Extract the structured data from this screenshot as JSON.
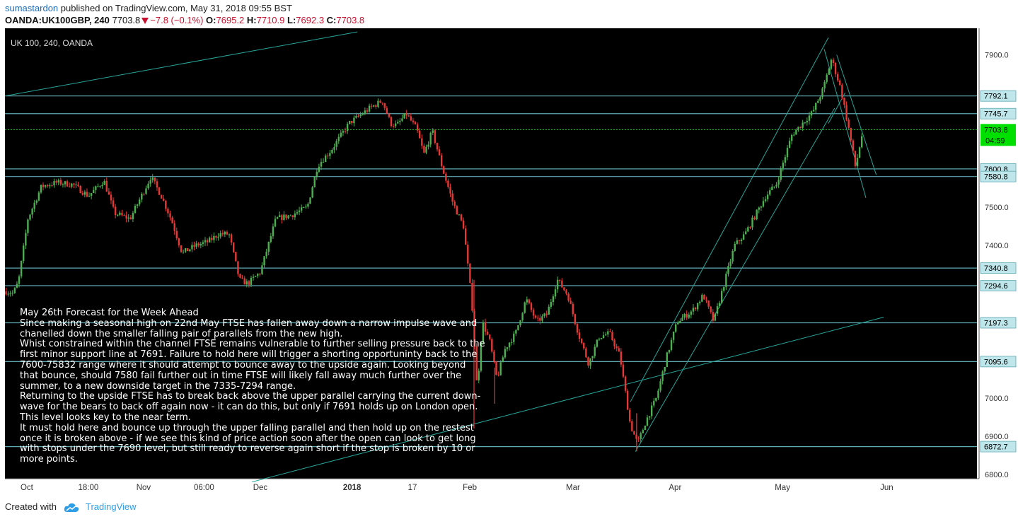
{
  "header": {
    "author": "sumastardon",
    "published": "published on TradingView.com, May 31, 2018 09:55 BST",
    "symbol": "OANDA:UK100GBP, 240",
    "last": "7703.8",
    "change": "−7.8 (−0.1%)",
    "o_label": "O:",
    "o_value": "7695.2",
    "h_label": "H:",
    "h_value": "7710.9",
    "l_label": "L:",
    "l_value": "7692.3",
    "c_label": "C:",
    "c_value": "7703.8"
  },
  "footer": {
    "created_with": "Created with",
    "brand": "TradingView",
    "brand_icon": "cloud-icon"
  },
  "annotation": {
    "lines": [
      "May 26th Forecast for the Week Ahead",
      "Since making a seasonal high on 22nd May FTSE has fallen away down a narrow impulse wave and chanelled down the smaller falling pair of parallels from the new high.",
      "Whist constrained within the channel FTSE remains vulnerable to further selling pressure back to the first minor support line at 7691. Failure to hold here will trigger a shorting opportuninty back to the 7600-75832 range where it should attempt to bounce away to the upside again. Looking beyond that bounce, should 7580 fail further out in time FTSE will likely fall away much further over the summer, to a new downside target in the 7335-7294 range.",
      "Returning to the upside FTSE has to break back above the upper parallel carrying the current down-wave for the bears to back off again now - it can do this, but only if 7691 holds up on London open. This level looks key to the near term.",
      "It must hold here and bounce up through the upper falling parallel and then hold up on the restest once it is broken above - if we see this kind of price action soon after the open can look to get long with stops under the 7690 level, but still ready to reverse again short if the stop is broken by 10 or more points."
    ]
  },
  "chart_data": {
    "type": "candlestick",
    "title": "UK 100, 240, OANDA",
    "background": "#000000",
    "colors": {
      "up": "#4caf50",
      "down": "#e53935",
      "hline": "#5fa8b3",
      "channel": "#26a69a",
      "last_price": "#00e000"
    },
    "ylim": [
      6780,
      7950
    ],
    "y_ticks": [
      7900.0,
      7500.0,
      7400.0,
      7000.0,
      6900.0,
      6800.0
    ],
    "x_tick_labels": [
      "Oct",
      "18:00",
      "Nov",
      "06:00",
      "Dec",
      "2018",
      "17",
      "Feb",
      "Mar",
      "Apr",
      "May",
      "Jun"
    ],
    "horizontal_levels": [
      7792.1,
      7745.7,
      7600.8,
      7580.8,
      7340.8,
      7294.6,
      7197.3,
      7095.6,
      6872.7
    ],
    "level_labels": [
      "7792.1",
      "7745.7",
      "7600.8",
      "7580.8",
      "7340.8",
      "7294.6",
      "7197.3",
      "7095.6",
      "6872.7"
    ],
    "last_price": 7703.8,
    "last_price_label": "7703.8",
    "countdown": "04:59",
    "price_path": [
      [
        0,
        7280
      ],
      [
        0.8,
        7275
      ],
      [
        1.3,
        7305
      ],
      [
        2.2,
        7470
      ],
      [
        3.5,
        7555
      ],
      [
        5,
        7565
      ],
      [
        6.5,
        7560
      ],
      [
        8,
        7530
      ],
      [
        9.5,
        7570
      ],
      [
        10.5,
        7485
      ],
      [
        12,
        7470
      ],
      [
        14,
        7580
      ],
      [
        15,
        7530
      ],
      [
        16,
        7465
      ],
      [
        17,
        7380
      ],
      [
        18.3,
        7400
      ],
      [
        19.5,
        7410
      ],
      [
        20.5,
        7430
      ],
      [
        21.5,
        7430
      ],
      [
        22.5,
        7310
      ],
      [
        23.3,
        7300
      ],
      [
        24.5,
        7330
      ],
      [
        26,
        7470
      ],
      [
        27.5,
        7480
      ],
      [
        29,
        7500
      ],
      [
        30,
        7610
      ],
      [
        31.3,
        7650
      ],
      [
        33,
        7720
      ],
      [
        35,
        7760
      ],
      [
        36.2,
        7780
      ],
      [
        37,
        7720
      ],
      [
        37.6,
        7715
      ],
      [
        38.5,
        7745
      ],
      [
        39.5,
        7705
      ],
      [
        40.2,
        7640
      ],
      [
        41,
        7700
      ],
      [
        42,
        7600
      ],
      [
        43,
        7510
      ],
      [
        44,
        7450
      ],
      [
        44.8,
        7250
      ],
      [
        45.3,
        7020
      ],
      [
        45.8,
        7200
      ],
      [
        46.5,
        7150
      ],
      [
        47.2,
        7050
      ],
      [
        48,
        7130
      ],
      [
        49,
        7170
      ],
      [
        50,
        7260
      ],
      [
        51,
        7200
      ],
      [
        52,
        7220
      ],
      [
        53,
        7310
      ],
      [
        54,
        7270
      ],
      [
        55,
        7170
      ],
      [
        56,
        7090
      ],
      [
        57,
        7160
      ],
      [
        58,
        7170
      ],
      [
        59,
        7110
      ],
      [
        60,
        6930
      ],
      [
        60.7,
        6880
      ],
      [
        61.5,
        6940
      ],
      [
        62.5,
        7000
      ],
      [
        63.5,
        7110
      ],
      [
        64.5,
        7200
      ],
      [
        66,
        7230
      ],
      [
        67,
        7270
      ],
      [
        68,
        7200
      ],
      [
        69,
        7300
      ],
      [
        70,
        7400
      ],
      [
        71,
        7430
      ],
      [
        72,
        7480
      ],
      [
        73,
        7530
      ],
      [
        74,
        7560
      ],
      [
        75.5,
        7690
      ],
      [
        76.5,
        7720
      ],
      [
        77.5,
        7750
      ],
      [
        78.5,
        7810
      ],
      [
        79.3,
        7890
      ],
      [
        80.2,
        7810
      ],
      [
        81,
        7700
      ],
      [
        81.6,
        7605
      ],
      [
        82.3,
        7700
      ]
    ]
  }
}
